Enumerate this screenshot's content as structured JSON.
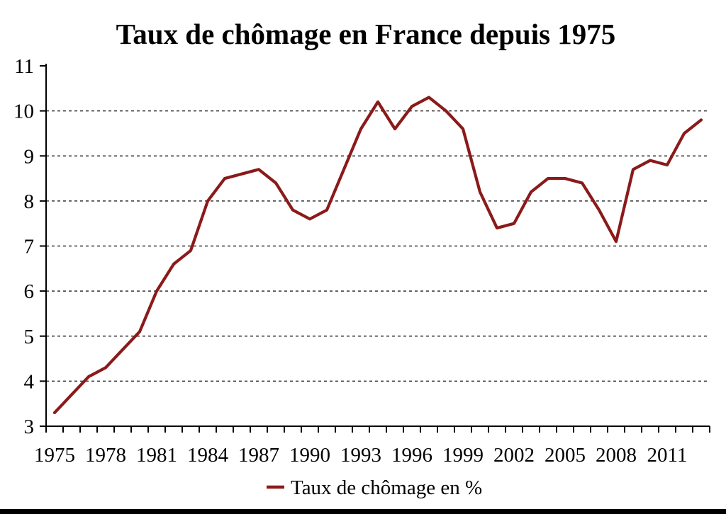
{
  "chart_data": {
    "type": "line",
    "title": "Taux de chômage en France depuis 1975",
    "legend_label": "Taux de chômage en %",
    "legend_position": "bottom-center",
    "grid": "horizontal-dashed",
    "line_color": "#8b1a1a",
    "axis_color": "#000000",
    "grid_color": "#333333",
    "ylim": [
      3,
      11
    ],
    "yticks": [
      3,
      4,
      5,
      6,
      7,
      8,
      9,
      10,
      11
    ],
    "gridline_values": [
      4,
      5,
      6,
      7,
      8,
      9,
      10
    ],
    "xtick_labels": [
      1975,
      1978,
      1981,
      1984,
      1987,
      1990,
      1993,
      1996,
      1999,
      2002,
      2005,
      2008,
      2011
    ],
    "x": [
      1975,
      1976,
      1977,
      1978,
      1979,
      1980,
      1981,
      1982,
      1983,
      1984,
      1985,
      1986,
      1987,
      1988,
      1989,
      1990,
      1991,
      1992,
      1993,
      1994,
      1995,
      1996,
      1997,
      1998,
      1999,
      2000,
      2001,
      2002,
      2003,
      2004,
      2005,
      2006,
      2007,
      2008,
      2009,
      2010,
      2011,
      2012,
      2013
    ],
    "series": [
      {
        "name": "Taux de chômage en %",
        "color": "#8b1a1a",
        "values": [
          3.3,
          3.7,
          4.1,
          4.3,
          4.7,
          5.1,
          6.0,
          6.6,
          6.9,
          8.0,
          8.5,
          8.6,
          8.7,
          8.4,
          7.8,
          7.6,
          7.8,
          8.7,
          9.6,
          10.2,
          9.6,
          10.1,
          10.3,
          10.0,
          9.6,
          8.2,
          7.4,
          7.5,
          8.2,
          8.5,
          8.5,
          8.4,
          7.8,
          7.1,
          8.7,
          8.9,
          8.8,
          9.5,
          9.8
        ]
      }
    ]
  }
}
